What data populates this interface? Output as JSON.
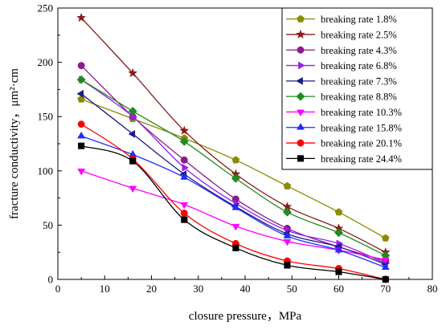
{
  "chart_data": {
    "type": "line",
    "xlabel": "closure pressure，MPa",
    "ylabel": "fracture conductivity，μm²·cm",
    "xlim": [
      0,
      80
    ],
    "ylim": [
      0,
      250
    ],
    "xticks": [
      0,
      10,
      20,
      30,
      40,
      50,
      60,
      70,
      80
    ],
    "yticks": [
      0,
      50,
      100,
      150,
      200,
      250
    ],
    "grid": false,
    "legend_position": "top-right",
    "x": [
      5,
      16,
      27,
      38,
      49,
      60,
      70
    ],
    "series": [
      {
        "name": "breaking rate 1.8%",
        "color": "#8b8b00",
        "marker": "pentagon",
        "values": [
          166,
          148,
          130,
          110,
          86,
          62,
          38
        ]
      },
      {
        "name": "breaking rate 2.5%",
        "color": "#8b1a1a",
        "marker": "star",
        "values": [
          241,
          190,
          137,
          97,
          67,
          47,
          25
        ]
      },
      {
        "name": "breaking rate 4.3%",
        "color": "#8b1a8b",
        "marker": "circle",
        "values": [
          197,
          150,
          110,
          74,
          47,
          30,
          17
        ]
      },
      {
        "name": "breaking rate 6.8%",
        "color": "#9b1fe8",
        "marker": "triangle-right",
        "values": [
          184,
          150,
          103,
          70,
          45,
          33,
          15
        ]
      },
      {
        "name": "breaking rate 7.3%",
        "color": "#1a1a8b",
        "marker": "triangle-left",
        "values": [
          171,
          134,
          97,
          67,
          42,
          30,
          14
        ]
      },
      {
        "name": "breaking rate 8.8%",
        "color": "#1f8b1f",
        "marker": "diamond",
        "values": [
          184,
          155,
          127,
          93,
          62,
          43,
          22
        ]
      },
      {
        "name": "breaking rate 10.3%",
        "color": "#ff00ff",
        "marker": "triangle-down",
        "values": [
          100,
          84,
          69,
          49,
          35,
          27,
          18
        ]
      },
      {
        "name": "breaking rate 15.8%",
        "color": "#1e2cff",
        "marker": "triangle-up",
        "values": [
          132,
          115,
          94,
          66,
          40,
          27,
          11
        ]
      },
      {
        "name": "breaking rate 20.1%",
        "color": "#ff0000",
        "marker": "circle",
        "values": [
          143,
          111,
          61,
          33,
          17,
          10,
          0
        ]
      },
      {
        "name": "breaking rate 24.4%",
        "color": "#000000",
        "marker": "square",
        "values": [
          123,
          109,
          55,
          29,
          13,
          7,
          0
        ]
      }
    ]
  }
}
